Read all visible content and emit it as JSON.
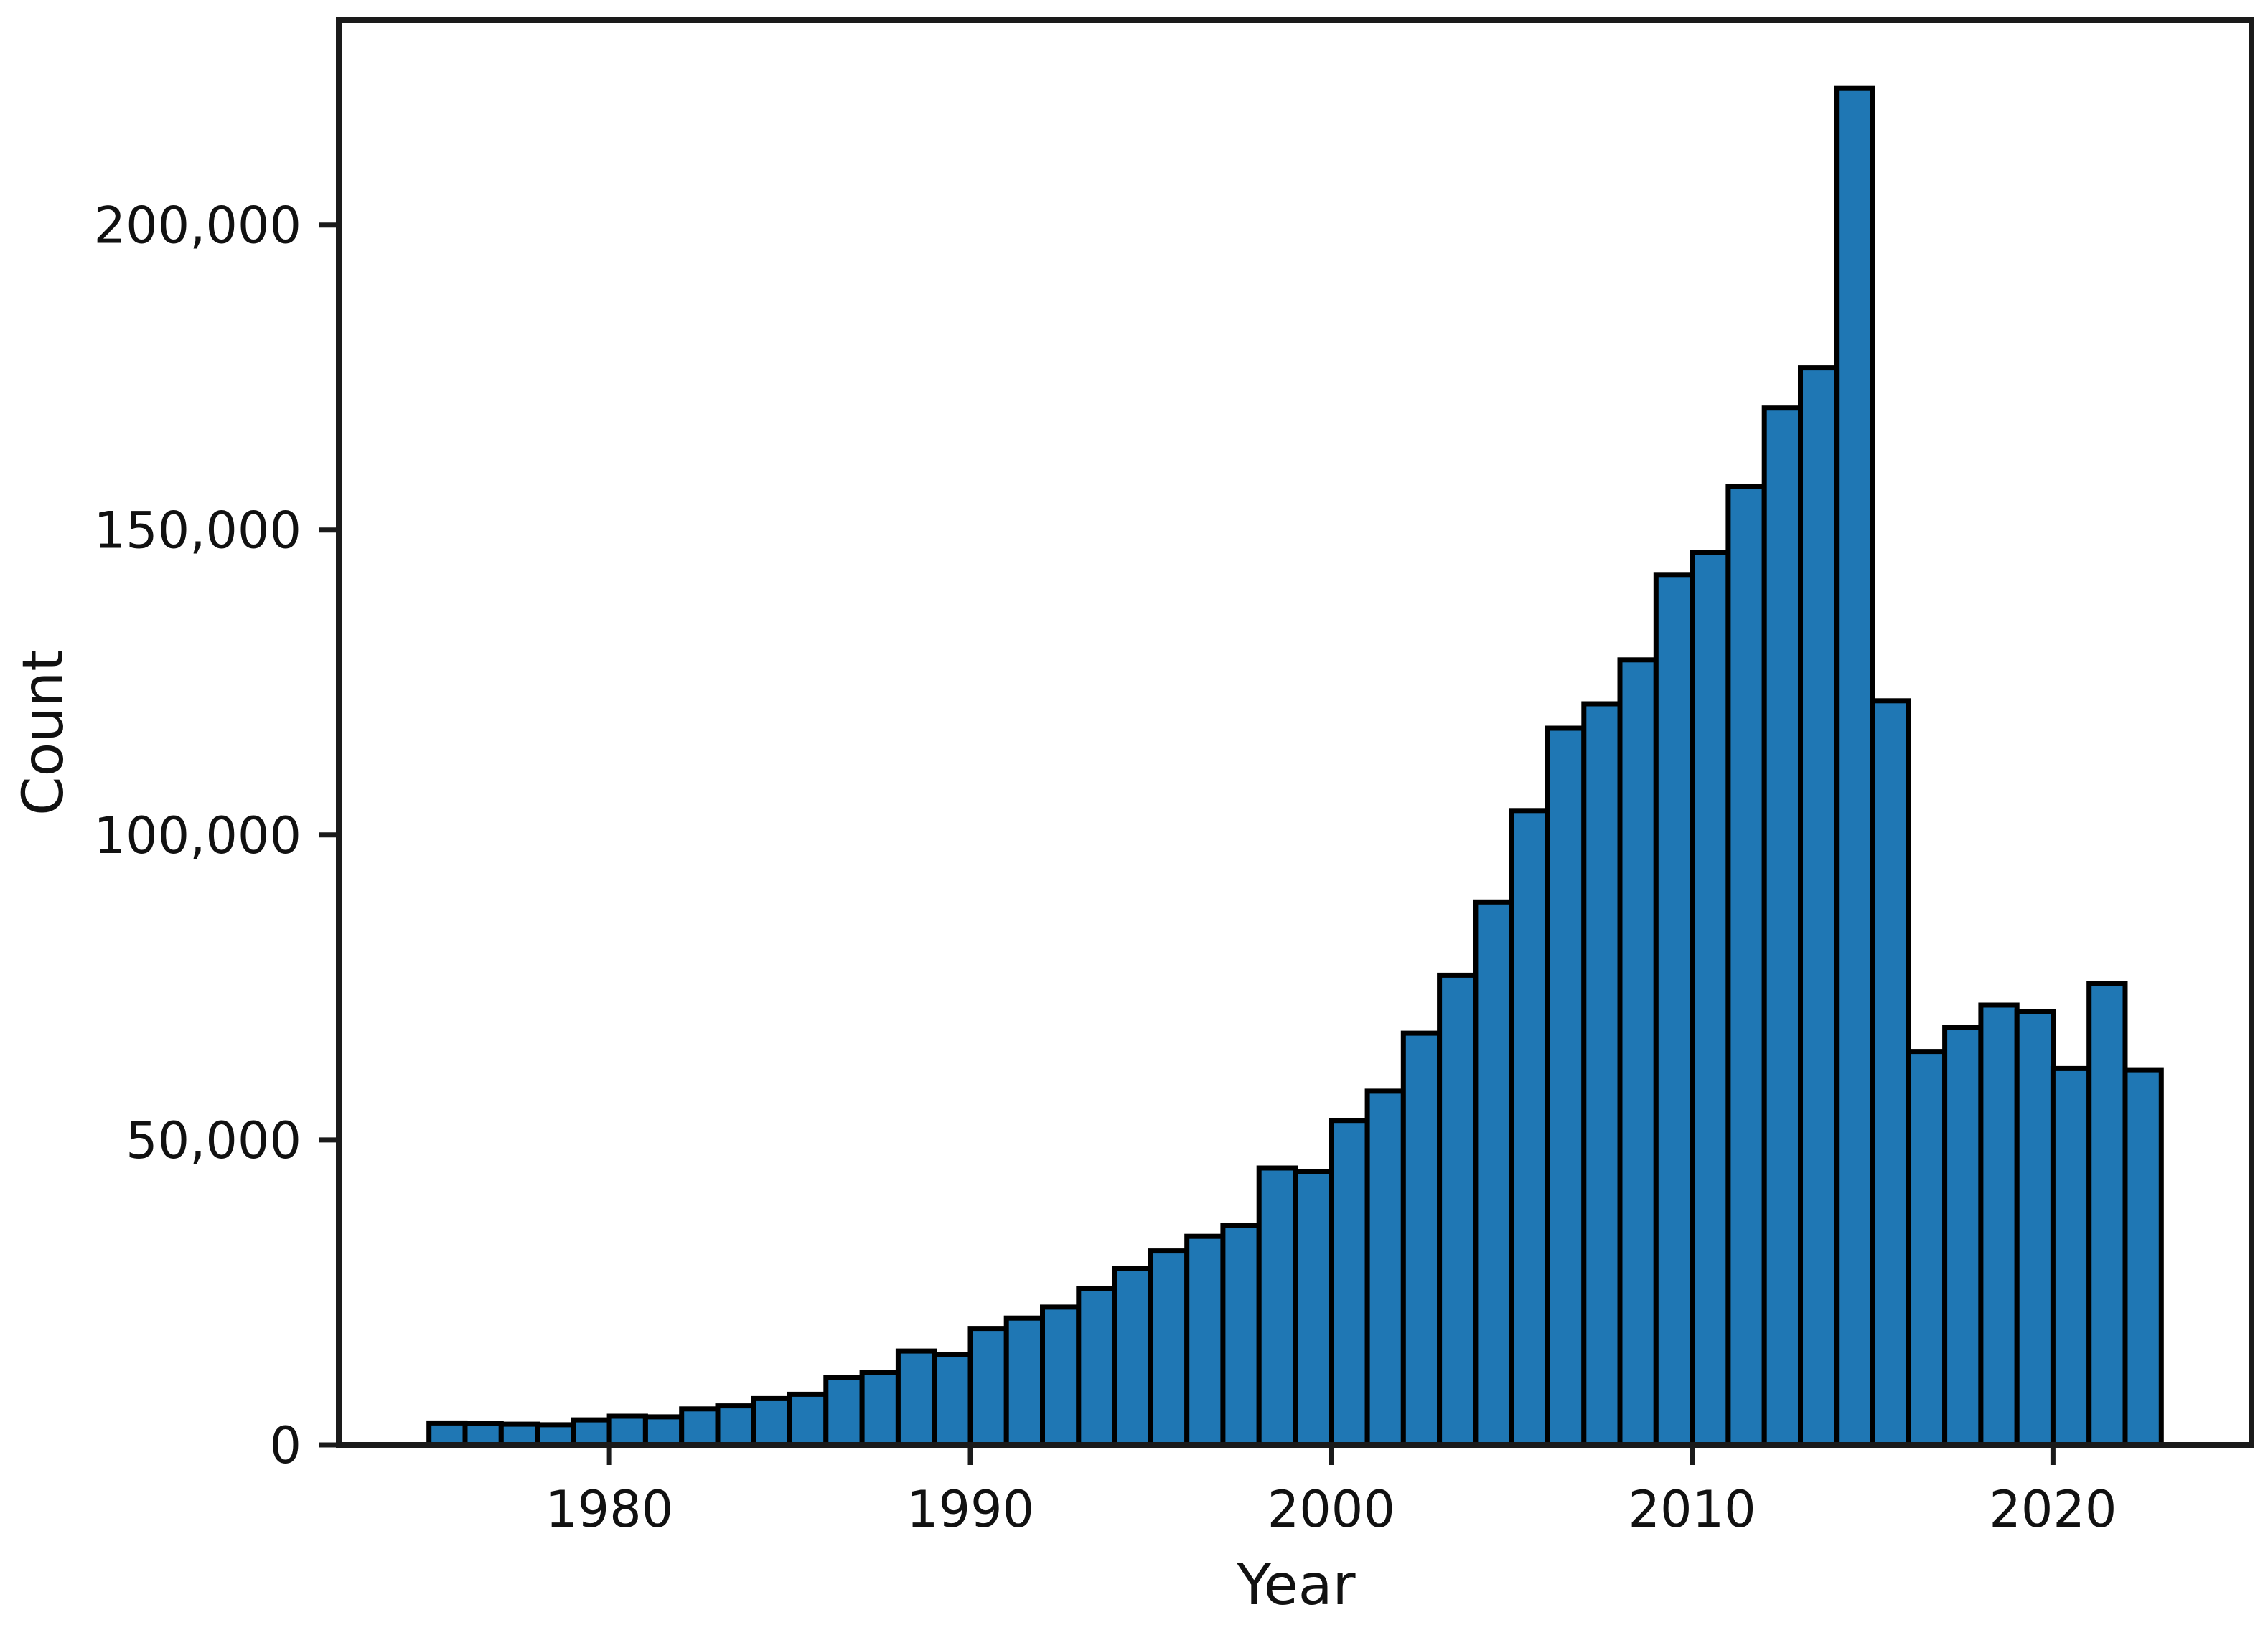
{
  "figure": {
    "title": "",
    "xlabel": "Year",
    "ylabel": "Count"
  },
  "colors": {
    "bar_fill": "#1f77b4",
    "bar_edge": "#000000",
    "spine": "#1a1a1a",
    "tick": "#1a1a1a",
    "text": "#111111",
    "background": "#ffffff"
  },
  "chart_data": {
    "type": "bar",
    "subtype": "histogram",
    "title": "",
    "xlabel": "Year",
    "ylabel": "Count",
    "grid": false,
    "legend": null,
    "bin_width_years": 1,
    "xlim": [
      1972.5,
      2025.5
    ],
    "ylim": [
      0,
      233600
    ],
    "xticks": [
      {
        "value": 1980,
        "label": "1980"
      },
      {
        "value": 1990,
        "label": "1990"
      },
      {
        "value": 2000,
        "label": "2000"
      },
      {
        "value": 2010,
        "label": "2010"
      },
      {
        "value": 2020,
        "label": "2020"
      }
    ],
    "yticks": [
      {
        "value": 0,
        "label": "0"
      },
      {
        "value": 50000,
        "label": "50,000"
      },
      {
        "value": 100000,
        "label": "100,000"
      },
      {
        "value": 150000,
        "label": "150,000"
      },
      {
        "value": 200000,
        "label": "200,000"
      }
    ],
    "categories": [
      1975,
      1976,
      1977,
      1978,
      1979,
      1980,
      1981,
      1982,
      1983,
      1984,
      1985,
      1986,
      1987,
      1988,
      1989,
      1990,
      1991,
      1992,
      1993,
      1994,
      1995,
      1996,
      1997,
      1998,
      1999,
      2000,
      2001,
      2002,
      2003,
      2004,
      2005,
      2006,
      2007,
      2008,
      2009,
      2010,
      2011,
      2012,
      2013,
      2014,
      2015,
      2016,
      2017,
      2018,
      2019,
      2020,
      2021,
      2022
    ],
    "values": [
      3600,
      3500,
      3400,
      3300,
      4100,
      4700,
      4600,
      5900,
      6400,
      7600,
      8300,
      11000,
      11900,
      15400,
      14800,
      19100,
      20800,
      22600,
      25700,
      29000,
      31800,
      34200,
      36000,
      45400,
      44800,
      53200,
      58000,
      67500,
      77000,
      89000,
      104000,
      117500,
      121500,
      128700,
      142700,
      146300,
      157200,
      170000,
      176600,
      222400,
      122000,
      64500,
      68400,
      72100,
      71100,
      61700,
      75600,
      61500
    ]
  }
}
